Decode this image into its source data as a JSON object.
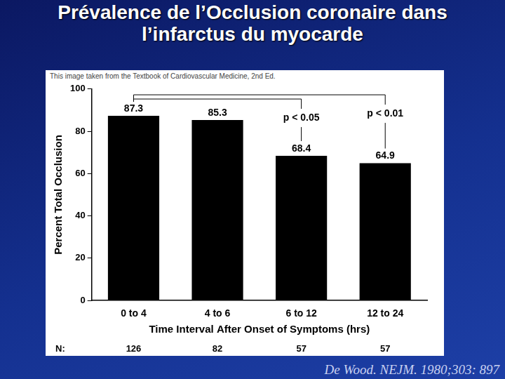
{
  "chart_data": {
    "type": "bar",
    "title": "Prévalence de l’Occlusion coronaire dans l’infarctus du myocarde",
    "subtitle": "This image taken from the Textbook of Cardiovascular Medicine, 2nd Ed.",
    "x_label": "Time Interval After Onset of Symptoms (hrs)",
    "y_label": "Percent Total Occlusion",
    "categories": [
      "0 to 4",
      "4 to 6",
      "6 to 12",
      "12 to 24"
    ],
    "values": [
      87.3,
      85.3,
      68.4,
      64.9
    ],
    "color": "#000000",
    "ylim": [
      0,
      100
    ],
    "yticks": [
      0,
      20,
      40,
      60,
      80,
      100
    ],
    "grid": false,
    "data_labels": true,
    "annotations": [
      {
        "text": "p < 0.05",
        "from": "0 to 4",
        "to": "6 to 12"
      },
      {
        "text": "p < 0.01",
        "from": "0 to 4",
        "to": "12 to 24"
      }
    ],
    "n_label": "N:",
    "n_values": [
      126,
      82,
      57,
      57
    ],
    "source": "De Wood. NEJM. 1980;303: 897"
  }
}
